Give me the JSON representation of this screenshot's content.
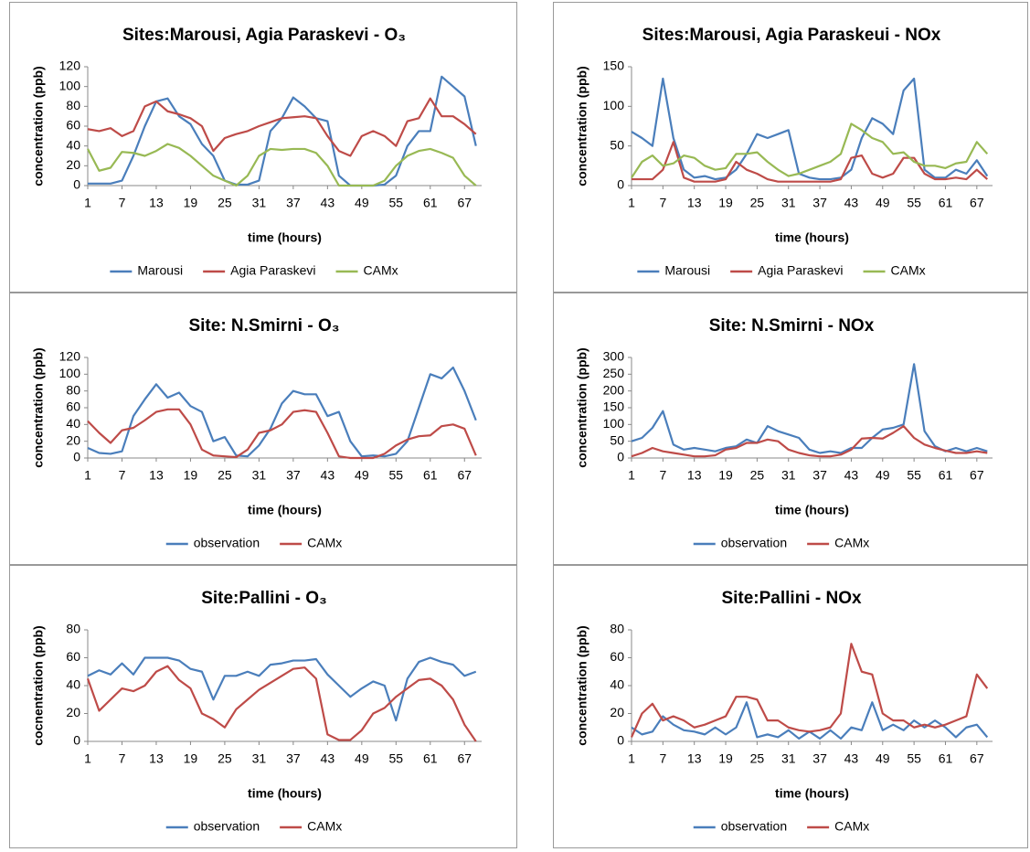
{
  "chart_data": [
    {
      "type": "line",
      "title": "Sites:Marousi, Agia Paraskevi - O₃",
      "x_label": "time (hours)",
      "y_label": "concentration (ppb)",
      "x": [
        1,
        3,
        5,
        7,
        9,
        11,
        13,
        15,
        17,
        19,
        21,
        23,
        25,
        27,
        29,
        31,
        33,
        35,
        37,
        39,
        41,
        43,
        45,
        47,
        49,
        51,
        53,
        55,
        57,
        59,
        61,
        63,
        65,
        67,
        69
      ],
      "xlim": [
        1,
        70
      ],
      "xticks": [
        1,
        7,
        13,
        19,
        25,
        31,
        37,
        43,
        49,
        55,
        61,
        67
      ],
      "ylim": [
        0,
        120
      ],
      "yticks": [
        0,
        20,
        40,
        60,
        80,
        100,
        120
      ],
      "series": [
        {
          "name": "Marousi",
          "color": "#4a7ebb",
          "values": [
            2,
            2,
            2,
            5,
            30,
            60,
            85,
            88,
            70,
            62,
            42,
            30,
            5,
            1,
            1,
            5,
            55,
            68,
            89,
            80,
            68,
            65,
            10,
            0,
            0,
            0,
            1,
            10,
            40,
            55,
            55,
            110,
            100,
            90,
            40
          ]
        },
        {
          "name": "Agia Paraskevi",
          "color": "#be4b48",
          "values": [
            57,
            55,
            58,
            50,
            55,
            80,
            85,
            75,
            72,
            68,
            60,
            35,
            48,
            52,
            55,
            60,
            64,
            68,
            69,
            70,
            68,
            50,
            35,
            30,
            50,
            55,
            50,
            40,
            65,
            68,
            88,
            70,
            70,
            62,
            52
          ]
        },
        {
          "name": "CAMx",
          "color": "#98b954",
          "values": [
            37,
            15,
            18,
            34,
            33,
            30,
            35,
            42,
            38,
            30,
            20,
            10,
            5,
            0,
            10,
            30,
            37,
            36,
            37,
            37,
            33,
            20,
            0,
            0,
            0,
            0,
            5,
            20,
            30,
            35,
            37,
            33,
            28,
            10,
            0
          ]
        }
      ]
    },
    {
      "type": "line",
      "title": "Sites:Marousi, Agia Paraskeui - NOx",
      "x_label": "time (hours)",
      "y_label": "concentration (ppb)",
      "x": [
        1,
        3,
        5,
        7,
        9,
        11,
        13,
        15,
        17,
        19,
        21,
        23,
        25,
        27,
        29,
        31,
        33,
        35,
        37,
        39,
        41,
        43,
        45,
        47,
        49,
        51,
        53,
        55,
        57,
        59,
        61,
        63,
        65,
        67,
        69
      ],
      "xlim": [
        1,
        70
      ],
      "xticks": [
        1,
        7,
        13,
        19,
        25,
        31,
        37,
        43,
        49,
        55,
        61,
        67
      ],
      "ylim": [
        0,
        150
      ],
      "yticks": [
        0,
        50,
        100,
        150
      ],
      "series": [
        {
          "name": "Marousi",
          "color": "#4a7ebb",
          "values": [
            68,
            60,
            50,
            135,
            60,
            20,
            10,
            12,
            8,
            10,
            20,
            40,
            65,
            60,
            65,
            70,
            15,
            10,
            8,
            8,
            10,
            20,
            60,
            85,
            78,
            65,
            120,
            135,
            20,
            10,
            10,
            20,
            15,
            32,
            12
          ]
        },
        {
          "name": "Agia Paraskevi",
          "color": "#be4b48",
          "values": [
            8,
            8,
            8,
            20,
            55,
            10,
            5,
            5,
            5,
            8,
            30,
            20,
            15,
            8,
            5,
            5,
            5,
            5,
            5,
            5,
            8,
            35,
            38,
            15,
            10,
            15,
            35,
            35,
            15,
            8,
            8,
            10,
            8,
            20,
            8
          ]
        },
        {
          "name": "CAMx",
          "color": "#98b954",
          "values": [
            10,
            30,
            38,
            25,
            28,
            38,
            35,
            25,
            20,
            22,
            40,
            40,
            42,
            30,
            20,
            12,
            15,
            20,
            25,
            30,
            40,
            78,
            70,
            60,
            55,
            40,
            42,
            30,
            25,
            25,
            22,
            28,
            30,
            55,
            40
          ]
        }
      ]
    },
    {
      "type": "line",
      "title": "Site: N.Smirni - O₃",
      "x_label": "time (hours)",
      "y_label": "concentration (ppb)",
      "x": [
        1,
        3,
        5,
        7,
        9,
        11,
        13,
        15,
        17,
        19,
        21,
        23,
        25,
        27,
        29,
        31,
        33,
        35,
        37,
        39,
        41,
        43,
        45,
        47,
        49,
        51,
        53,
        55,
        57,
        59,
        61,
        63,
        65,
        67,
        69
      ],
      "xlim": [
        1,
        70
      ],
      "xticks": [
        1,
        7,
        13,
        19,
        25,
        31,
        37,
        43,
        49,
        55,
        61,
        67
      ],
      "ylim": [
        0,
        120
      ],
      "yticks": [
        0,
        20,
        40,
        60,
        80,
        100,
        120
      ],
      "series": [
        {
          "name": "observation",
          "color": "#4a7ebb",
          "values": [
            12,
            6,
            5,
            8,
            50,
            70,
            88,
            72,
            78,
            62,
            55,
            20,
            25,
            3,
            2,
            15,
            35,
            65,
            80,
            76,
            76,
            50,
            55,
            20,
            2,
            3,
            2,
            5,
            20,
            60,
            100,
            95,
            108,
            80,
            45
          ]
        },
        {
          "name": "CAMx",
          "color": "#be4b48",
          "values": [
            44,
            30,
            18,
            33,
            36,
            45,
            55,
            58,
            58,
            40,
            10,
            3,
            2,
            1,
            10,
            30,
            33,
            40,
            55,
            57,
            55,
            30,
            2,
            0,
            0,
            0,
            5,
            15,
            22,
            26,
            27,
            38,
            40,
            35,
            3
          ]
        }
      ]
    },
    {
      "type": "line",
      "title": "Site: N.Smirni - NOx",
      "x_label": "time (hours)",
      "y_label": "concentration (ppb)",
      "x": [
        1,
        3,
        5,
        7,
        9,
        11,
        13,
        15,
        17,
        19,
        21,
        23,
        25,
        27,
        29,
        31,
        33,
        35,
        37,
        39,
        41,
        43,
        45,
        47,
        49,
        51,
        53,
        55,
        57,
        59,
        61,
        63,
        65,
        67,
        69
      ],
      "xlim": [
        1,
        70
      ],
      "xticks": [
        1,
        7,
        13,
        19,
        25,
        31,
        37,
        43,
        49,
        55,
        61,
        67
      ],
      "ylim": [
        0,
        300
      ],
      "yticks": [
        0,
        50,
        100,
        150,
        200,
        250,
        300
      ],
      "series": [
        {
          "name": "observation",
          "color": "#4a7ebb",
          "values": [
            50,
            60,
            90,
            140,
            40,
            25,
            30,
            25,
            20,
            30,
            35,
            55,
            45,
            95,
            80,
            70,
            60,
            25,
            15,
            20,
            15,
            30,
            30,
            60,
            85,
            90,
            100,
            280,
            80,
            35,
            20,
            30,
            20,
            30,
            20
          ]
        },
        {
          "name": "CAMx",
          "color": "#be4b48",
          "values": [
            5,
            15,
            30,
            20,
            15,
            10,
            5,
            5,
            8,
            25,
            30,
            45,
            45,
            55,
            50,
            25,
            15,
            8,
            5,
            5,
            10,
            25,
            58,
            60,
            58,
            75,
            95,
            60,
            40,
            30,
            22,
            15,
            15,
            20,
            15
          ]
        }
      ]
    },
    {
      "type": "line",
      "title": "Site:Pallini - O₃",
      "x_label": "time (hours)",
      "y_label": "cocnentration (ppb)",
      "x": [
        1,
        3,
        5,
        7,
        9,
        11,
        13,
        15,
        17,
        19,
        21,
        23,
        25,
        27,
        29,
        31,
        33,
        35,
        37,
        39,
        41,
        43,
        45,
        47,
        49,
        51,
        53,
        55,
        57,
        59,
        61,
        63,
        65,
        67,
        69
      ],
      "xlim": [
        1,
        70
      ],
      "xticks": [
        1,
        7,
        13,
        19,
        25,
        31,
        37,
        43,
        49,
        55,
        61,
        67
      ],
      "ylim": [
        0,
        80
      ],
      "yticks": [
        0,
        20,
        40,
        60,
        80
      ],
      "series": [
        {
          "name": "observation",
          "color": "#4a7ebb",
          "values": [
            47,
            51,
            48,
            56,
            48,
            60,
            60,
            60,
            58,
            52,
            50,
            30,
            47,
            47,
            50,
            47,
            55,
            56,
            58,
            58,
            59,
            48,
            40,
            32,
            38,
            43,
            40,
            15,
            45,
            57,
            60,
            57,
            55,
            47,
            50
          ]
        },
        {
          "name": "CAMx",
          "color": "#be4b48",
          "values": [
            45,
            22,
            30,
            38,
            36,
            40,
            50,
            54,
            44,
            38,
            20,
            16,
            10,
            23,
            30,
            37,
            42,
            47,
            52,
            53,
            45,
            5,
            1,
            1,
            8,
            20,
            24,
            32,
            38,
            44,
            45,
            40,
            30,
            12,
            0
          ]
        }
      ]
    },
    {
      "type": "line",
      "title": "Site:Pallini - NOx",
      "x_label": "time (hours)",
      "y_label": "concentration (ppb)",
      "x": [
        1,
        3,
        5,
        7,
        9,
        11,
        13,
        15,
        17,
        19,
        21,
        23,
        25,
        27,
        29,
        31,
        33,
        35,
        37,
        39,
        41,
        43,
        45,
        47,
        49,
        51,
        53,
        55,
        57,
        59,
        61,
        63,
        65,
        67,
        69
      ],
      "xlim": [
        1,
        70
      ],
      "xticks": [
        1,
        7,
        13,
        19,
        25,
        31,
        37,
        43,
        49,
        55,
        61,
        67
      ],
      "ylim": [
        0,
        80
      ],
      "yticks": [
        0,
        20,
        40,
        60,
        80
      ],
      "series": [
        {
          "name": "observation",
          "color": "#4a7ebb",
          "values": [
            10,
            5,
            7,
            18,
            12,
            8,
            7,
            5,
            10,
            5,
            10,
            28,
            3,
            5,
            3,
            8,
            2,
            7,
            2,
            8,
            2,
            10,
            8,
            28,
            8,
            12,
            8,
            15,
            10,
            15,
            10,
            3,
            10,
            12,
            3
          ]
        },
        {
          "name": "CAMx",
          "color": "#be4b48",
          "values": [
            3,
            20,
            27,
            15,
            18,
            15,
            10,
            12,
            15,
            18,
            32,
            32,
            30,
            15,
            15,
            10,
            8,
            7,
            8,
            10,
            20,
            70,
            50,
            48,
            20,
            15,
            15,
            10,
            12,
            10,
            12,
            15,
            18,
            48,
            38
          ]
        }
      ]
    }
  ]
}
